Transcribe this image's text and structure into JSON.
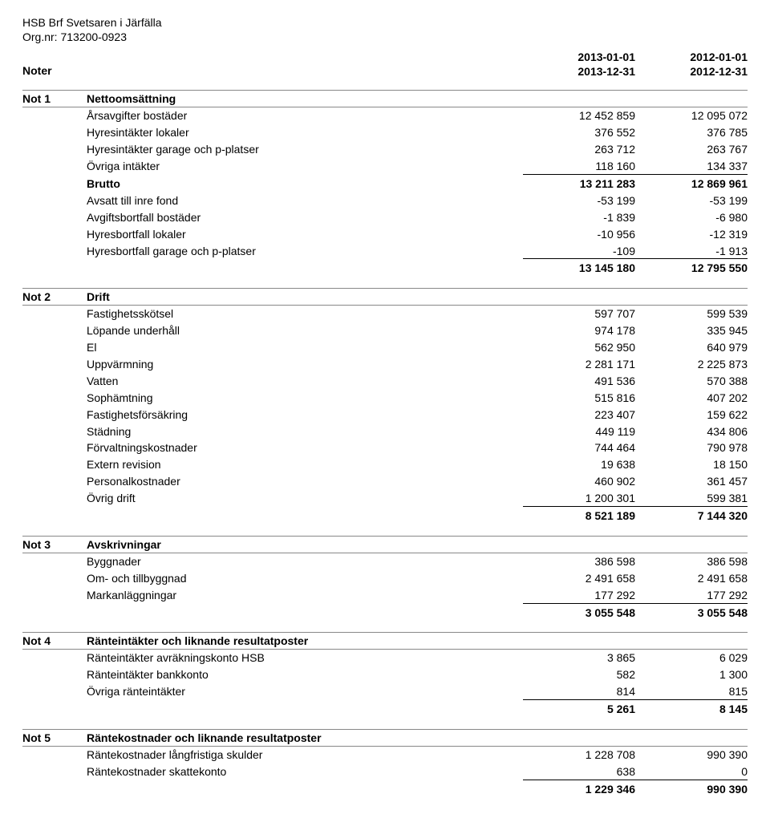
{
  "header": {
    "org_name": "HSB Brf Svetsaren i Järfälla",
    "org_nr_label": "Org.nr: 713200-0923",
    "noter_label": "Noter",
    "col1_line1": "2013-01-01",
    "col1_line2": "2013-12-31",
    "col2_line1": "2012-01-01",
    "col2_line2": "2012-12-31"
  },
  "notes": [
    {
      "num": "Not 1",
      "title": "Nettoomsättning",
      "rows": [
        {
          "label": "Årsavgifter bostäder",
          "v1": "12 452 859",
          "v2": "12 095 072"
        },
        {
          "label": "Hyresintäkter lokaler",
          "v1": "376 552",
          "v2": "376 785"
        },
        {
          "label": "Hyresintäkter garage och p-platser",
          "v1": "263 712",
          "v2": "263 767"
        },
        {
          "label": "Övriga intäkter",
          "v1": "118 160",
          "v2": "134 337",
          "underline": true
        },
        {
          "label": "Brutto",
          "v1": "13 211 283",
          "v2": "12 869 961",
          "bold": true
        },
        {
          "label": "Avsatt till inre fond",
          "v1": "-53 199",
          "v2": "-53 199"
        },
        {
          "label": "Avgiftsbortfall bostäder",
          "v1": "-1 839",
          "v2": "-6 980"
        },
        {
          "label": "Hyresbortfall lokaler",
          "v1": "-10 956",
          "v2": "-12 319"
        },
        {
          "label": "Hyresbortfall garage och p-platser",
          "v1": "-109",
          "v2": "-1 913",
          "underline": true
        },
        {
          "label": "",
          "v1": "13 145 180",
          "v2": "12 795 550",
          "bold": true
        }
      ]
    },
    {
      "num": "Not 2",
      "title": "Drift",
      "rows": [
        {
          "label": "Fastighetsskötsel",
          "v1": "597 707",
          "v2": "599 539"
        },
        {
          "label": "Löpande underhåll",
          "v1": "974 178",
          "v2": "335 945"
        },
        {
          "label": "El",
          "v1": "562 950",
          "v2": "640 979"
        },
        {
          "label": "Uppvärmning",
          "v1": "2 281 171",
          "v2": "2 225 873"
        },
        {
          "label": "Vatten",
          "v1": "491 536",
          "v2": "570 388"
        },
        {
          "label": "Sophämtning",
          "v1": "515 816",
          "v2": "407 202"
        },
        {
          "label": "Fastighetsförsäkring",
          "v1": "223 407",
          "v2": "159 622"
        },
        {
          "label": "Städning",
          "v1": "449 119",
          "v2": "434 806"
        },
        {
          "label": "Förvaltningskostnader",
          "v1": "744 464",
          "v2": "790 978"
        },
        {
          "label": "Extern revision",
          "v1": "19 638",
          "v2": "18 150"
        },
        {
          "label": "Personalkostnader",
          "v1": "460 902",
          "v2": "361 457"
        },
        {
          "label": "Övrig drift",
          "v1": "1 200 301",
          "v2": "599 381",
          "underline": true
        },
        {
          "label": "",
          "v1": "8 521 189",
          "v2": "7 144 320",
          "bold": true
        }
      ]
    },
    {
      "num": "Not 3",
      "title": "Avskrivningar",
      "rows": [
        {
          "label": "Byggnader",
          "v1": "386 598",
          "v2": "386 598"
        },
        {
          "label": "Om- och tillbyggnad",
          "v1": "2 491 658",
          "v2": "2 491 658"
        },
        {
          "label": "Markanläggningar",
          "v1": "177 292",
          "v2": "177 292",
          "underline": true
        },
        {
          "label": "",
          "v1": "3 055 548",
          "v2": "3 055 548",
          "bold": true
        }
      ]
    },
    {
      "num": "Not 4",
      "title": "Ränteintäkter och liknande resultatposter",
      "rows": [
        {
          "label": "Ränteintäkter avräkningskonto HSB",
          "v1": "3 865",
          "v2": "6 029"
        },
        {
          "label": "Ränteintäkter bankkonto",
          "v1": "582",
          "v2": "1 300"
        },
        {
          "label": "Övriga ränteintäkter",
          "v1": "814",
          "v2": "815",
          "underline": true
        },
        {
          "label": "",
          "v1": "5 261",
          "v2": "8 145",
          "bold": true
        }
      ]
    },
    {
      "num": "Not 5",
      "title": "Räntekostnader och liknande resultatposter",
      "rows": [
        {
          "label": "Räntekostnader långfristiga skulder",
          "v1": "1 228 708",
          "v2": "990 390"
        },
        {
          "label": "Räntekostnader skattekonto",
          "v1": "638",
          "v2": "0",
          "underline": true
        },
        {
          "label": "",
          "v1": "1 229 346",
          "v2": "990 390",
          "bold": true
        }
      ]
    }
  ]
}
